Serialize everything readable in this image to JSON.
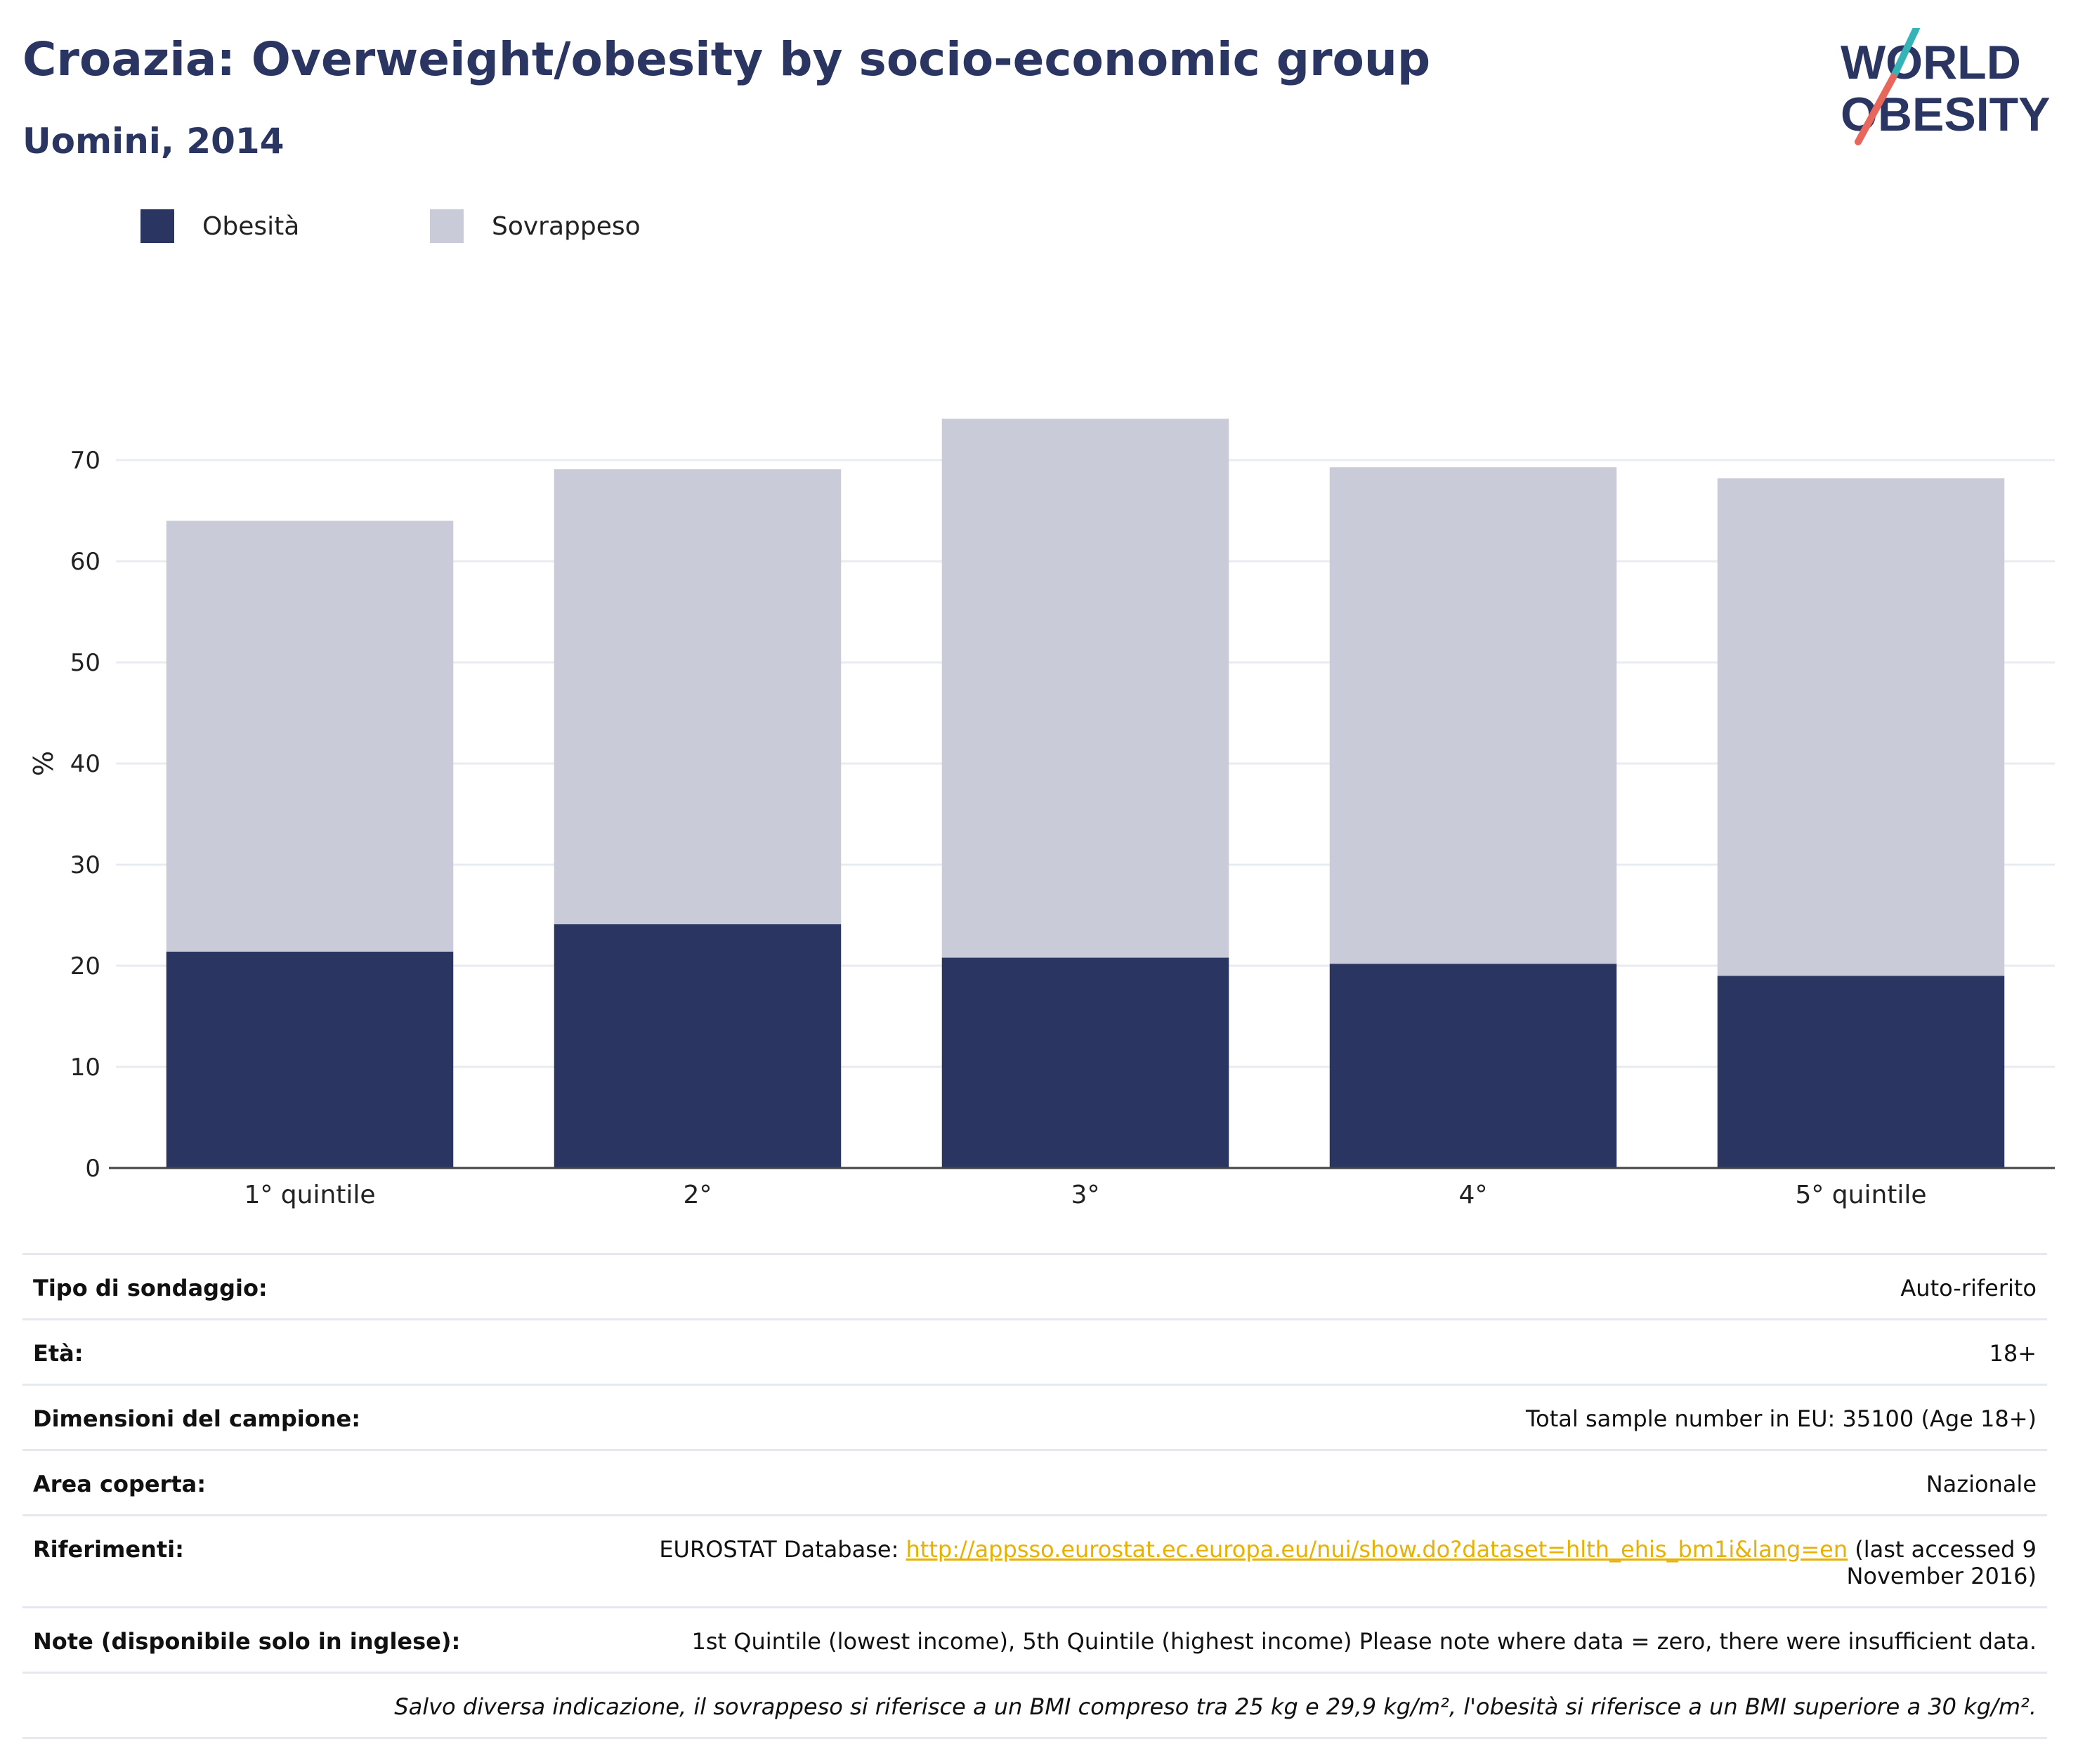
{
  "header": {
    "title": "Croazia: Overweight/obesity by socio-economic group",
    "subtitle": "Uomini, 2014"
  },
  "logo": {
    "line1": "WORLD",
    "line2": "OBESITY",
    "slash_top_color": "#36b3b6",
    "slash_bottom_color": "#e8675c"
  },
  "colors": {
    "obesity": "#2a3561",
    "overweight": "#c9ccd8",
    "link": "#e8b100",
    "text": "#2a3561"
  },
  "chart_data": {
    "type": "bar",
    "stacked": true,
    "categories": [
      "1° quintile",
      "2°",
      "3°",
      "4°",
      "5° quintile"
    ],
    "series": [
      {
        "name": "Obesità",
        "color": "#2a3561",
        "values": [
          21.4,
          24.1,
          20.8,
          20.2,
          19.0
        ]
      },
      {
        "name": "Sovrappeso",
        "color": "#c9ccd8",
        "values": [
          42.6,
          45.0,
          53.3,
          49.1,
          49.2
        ]
      }
    ],
    "ylabel": "%",
    "ylim": [
      0,
      78
    ],
    "yticks": [
      0,
      10,
      20,
      30,
      40,
      50,
      60,
      70
    ],
    "grid": true,
    "legend": "top-left"
  },
  "info": {
    "survey_type": {
      "label": "Tipo di sondaggio:",
      "value": "Auto-riferito"
    },
    "age": {
      "label": "Età:",
      "value": "18+"
    },
    "sample": {
      "label": "Dimensioni del campione:",
      "value": "Total sample number in EU: 35100 (Age 18+)"
    },
    "area": {
      "label": "Area coperta:",
      "value": "Nazionale"
    },
    "references": {
      "label": "Riferimenti:",
      "prefix": "EUROSTAT Database: ",
      "link": "http://appsso.eurostat.ec.europa.eu/nui/show.do?dataset=hlth_ehis_bm1i&lang=en",
      "suffix": " (last accessed 9 November 2016)"
    },
    "notes": {
      "label": "Note (disponibile solo in inglese):",
      "value": "1st Quintile (lowest income), 5th Quintile (highest income) Please note where data = zero, there were insufficient data."
    },
    "footnote": "Salvo diversa indicazione, il sovrappeso si riferisce a un BMI compreso tra 25 kg e 29,9 kg/m², l'obesità si riferisce a un BMI superiore a 30 kg/m²."
  }
}
